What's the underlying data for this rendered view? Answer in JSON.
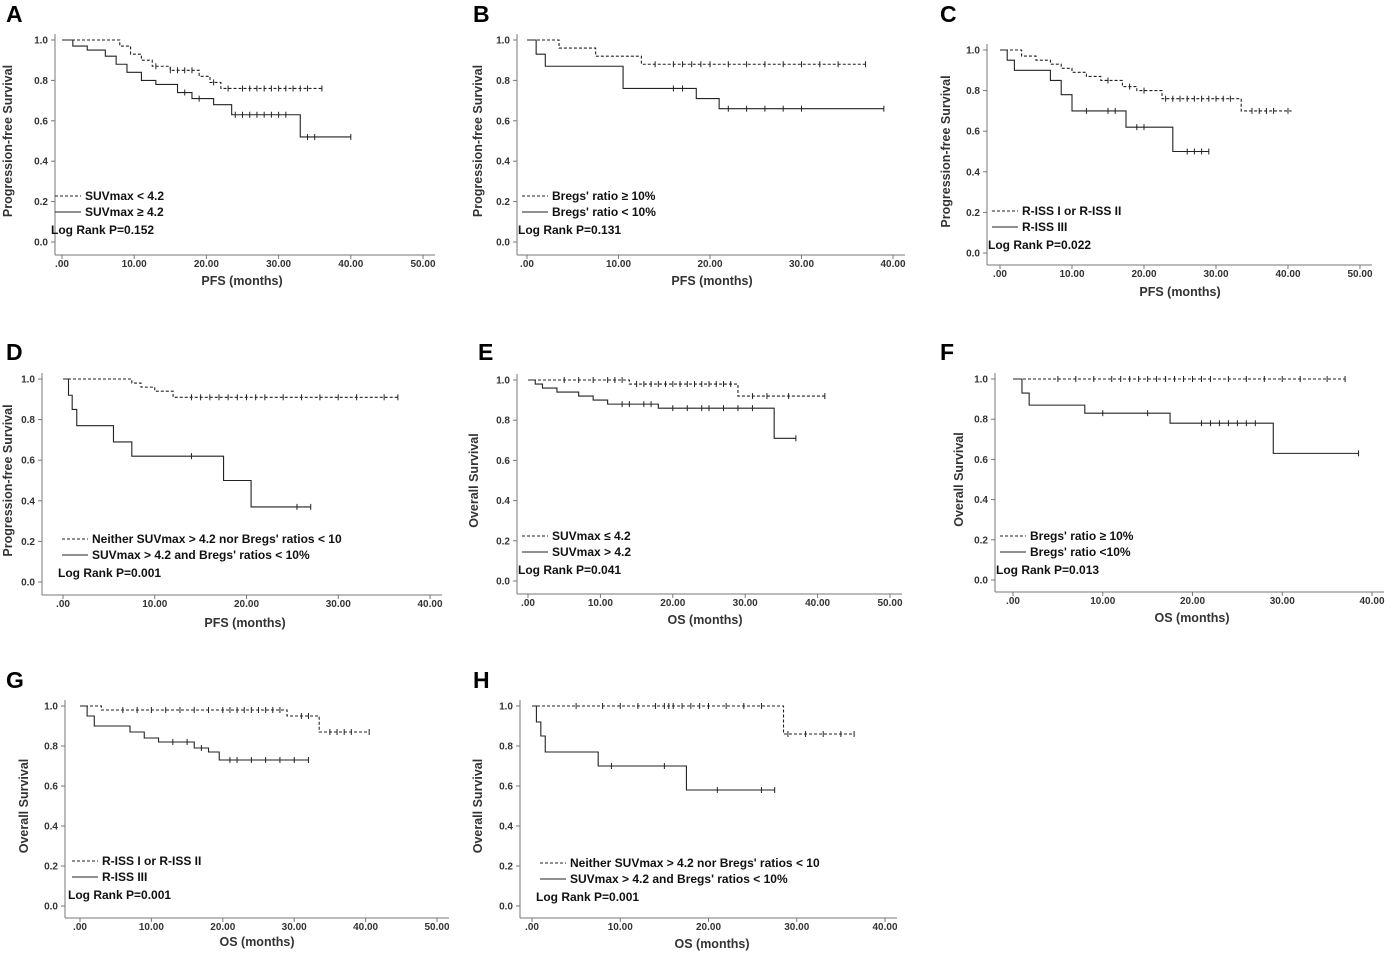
{
  "chart_data": [
    {
      "id": "A",
      "type": "line",
      "letter": "A",
      "ylabel": "Progression-free Survival",
      "xlabel": "PFS (months)",
      "xlim": [
        0,
        50
      ],
      "ylim": [
        0,
        1
      ],
      "xticks": [
        ".00",
        "10.00",
        "20.00",
        "30.00",
        "40.00",
        "50.00"
      ],
      "yticks": [
        "0.0",
        "0.2",
        "0.4",
        "0.6",
        "0.8",
        "1.0"
      ],
      "legend": [
        "SUVmax < 4.2",
        "SUVmax ≥ 4.2"
      ],
      "logrank": "Log Rank P=0.152",
      "series": [
        {
          "name": "SUVmax < 4.2",
          "style": "dashed",
          "steps": [
            [
              0,
              1.0
            ],
            [
              8,
              0.97
            ],
            [
              9.5,
              0.93
            ],
            [
              11,
              0.9
            ],
            [
              12.5,
              0.87
            ],
            [
              15,
              0.85
            ],
            [
              19,
              0.82
            ],
            [
              20.5,
              0.79
            ],
            [
              22,
              0.76
            ],
            [
              36,
              0.76
            ]
          ],
          "censors": [
            13,
            15,
            16,
            17,
            18,
            21,
            23,
            25,
            26,
            27,
            28,
            29,
            30,
            31,
            32,
            33,
            34,
            36
          ]
        },
        {
          "name": "SUVmax ≥ 4.2",
          "style": "solid",
          "steps": [
            [
              0,
              1.0
            ],
            [
              1.5,
              0.97
            ],
            [
              3.5,
              0.95
            ],
            [
              6,
              0.92
            ],
            [
              7.5,
              0.88
            ],
            [
              9,
              0.84
            ],
            [
              11,
              0.8
            ],
            [
              13,
              0.78
            ],
            [
              16,
              0.74
            ],
            [
              18,
              0.71
            ],
            [
              21,
              0.68
            ],
            [
              23.5,
              0.63
            ],
            [
              33,
              0.52
            ],
            [
              40,
              0.52
            ]
          ],
          "censors": [
            17,
            19,
            24,
            25,
            26,
            27,
            28,
            29,
            30,
            31,
            34,
            35,
            40
          ]
        }
      ]
    },
    {
      "id": "B",
      "type": "line",
      "letter": "B",
      "ylabel": "Progression-free Survival",
      "xlabel": "PFS (months)",
      "xlim": [
        0,
        40
      ],
      "ylim": [
        0,
        1
      ],
      "xticks": [
        ".00",
        "10.00",
        "20.00",
        "30.00",
        "40.00"
      ],
      "yticks": [
        "0.0",
        "0.2",
        "0.4",
        "0.6",
        "0.8",
        "1.0"
      ],
      "legend": [
        "Bregs' ratio ≥ 10%",
        "Bregs' ratio < 10%"
      ],
      "logrank": "Log Rank P=0.131",
      "series": [
        {
          "name": "Bregs' ratio ≥ 10%",
          "style": "dashed",
          "steps": [
            [
              0,
              1.0
            ],
            [
              3.5,
              0.96
            ],
            [
              7.5,
              0.92
            ],
            [
              12.5,
              0.88
            ],
            [
              37,
              0.88
            ]
          ],
          "censors": [
            14,
            16,
            17,
            18,
            19,
            20,
            22,
            24,
            26,
            28,
            30,
            32,
            34,
            37
          ]
        },
        {
          "name": "Bregs' ratio < 10%",
          "style": "solid",
          "steps": [
            [
              0,
              1.0
            ],
            [
              1,
              0.93
            ],
            [
              2,
              0.87
            ],
            [
              10.5,
              0.76
            ],
            [
              18.5,
              0.71
            ],
            [
              21,
              0.66
            ],
            [
              39,
              0.66
            ]
          ],
          "censors": [
            16,
            17,
            22,
            24,
            26,
            28,
            30,
            39
          ]
        }
      ]
    },
    {
      "id": "C",
      "type": "line",
      "letter": "C",
      "ylabel": "Progression-free Survival",
      "xlabel": "PFS (months)",
      "xlim": [
        0,
        50
      ],
      "ylim": [
        0,
        1
      ],
      "xticks": [
        ".00",
        "10.00",
        "20.00",
        "30.00",
        "40.00",
        "50.00"
      ],
      "yticks": [
        "0.0",
        "0.2",
        "0.4",
        "0.6",
        "0.8",
        "1.0"
      ],
      "legend": [
        "R-ISS I or R-ISS II",
        "R-ISS III"
      ],
      "logrank": "Log Rank P=0.022",
      "series": [
        {
          "name": "R-ISS I or R-ISS II",
          "style": "dashed",
          "steps": [
            [
              0,
              1.0
            ],
            [
              3,
              0.97
            ],
            [
              5,
              0.95
            ],
            [
              7,
              0.93
            ],
            [
              8.5,
              0.91
            ],
            [
              10,
              0.89
            ],
            [
              12,
              0.87
            ],
            [
              14,
              0.85
            ],
            [
              17,
              0.82
            ],
            [
              19,
              0.8
            ],
            [
              22.5,
              0.76
            ],
            [
              33.5,
              0.7
            ],
            [
              40.5,
              0.7
            ]
          ],
          "censors": [
            15,
            18,
            20,
            23,
            24,
            25,
            26,
            27,
            28,
            29,
            30,
            31,
            32,
            35,
            36,
            37,
            38,
            40
          ]
        },
        {
          "name": "R-ISS III",
          "style": "solid",
          "steps": [
            [
              0,
              1.0
            ],
            [
              1,
              0.95
            ],
            [
              2,
              0.9
            ],
            [
              7,
              0.85
            ],
            [
              8.5,
              0.78
            ],
            [
              10,
              0.7
            ],
            [
              17.5,
              0.62
            ],
            [
              24,
              0.5
            ],
            [
              29,
              0.5
            ]
          ],
          "censors": [
            12,
            15,
            16,
            19,
            20,
            26,
            27,
            28,
            29
          ]
        }
      ]
    },
    {
      "id": "D",
      "type": "line",
      "letter": "D",
      "ylabel": "Progression-free Survival",
      "xlabel": "PFS (months)",
      "xlim": [
        0,
        40
      ],
      "ylim": [
        0,
        1
      ],
      "xticks": [
        ".00",
        "10.00",
        "20.00",
        "30.00",
        "40.00"
      ],
      "yticks": [
        "0.0",
        "0.2",
        "0.4",
        "0.6",
        "0.8",
        "1.0"
      ],
      "legend": [
        "Neither SUVmax > 4.2 nor Bregs' ratios < 10",
        "SUVmax > 4.2 and Bregs' ratios < 10%"
      ],
      "logrank": "Log Rank P=0.001",
      "series": [
        {
          "name": "Neither SUVmax > 4.2 nor Bregs' ratios < 10",
          "style": "dashed",
          "steps": [
            [
              0,
              1.0
            ],
            [
              7.5,
              0.98
            ],
            [
              8.5,
              0.96
            ],
            [
              10,
              0.94
            ],
            [
              12,
              0.91
            ],
            [
              36.5,
              0.91
            ]
          ],
          "censors": [
            14,
            15,
            16,
            17,
            18,
            19,
            20,
            21,
            22,
            24,
            26,
            28,
            30,
            32,
            35,
            36.5
          ]
        },
        {
          "name": "SUVmax > 4.2 and Bregs' ratios < 10%",
          "style": "solid",
          "steps": [
            [
              0,
              1.0
            ],
            [
              0.6,
              0.92
            ],
            [
              1,
              0.85
            ],
            [
              1.5,
              0.77
            ],
            [
              5.5,
              0.69
            ],
            [
              7.5,
              0.62
            ],
            [
              17.5,
              0.5
            ],
            [
              20.5,
              0.37
            ],
            [
              27,
              0.37
            ]
          ],
          "censors": [
            14,
            25.5,
            27
          ]
        }
      ]
    },
    {
      "id": "E",
      "type": "line",
      "letter": "E",
      "ylabel": "Overall Survival",
      "xlabel": "OS (months)",
      "xlim": [
        0,
        50
      ],
      "ylim": [
        0,
        1
      ],
      "xticks": [
        ".00",
        "10.00",
        "20.00",
        "30.00",
        "40.00",
        "50.00"
      ],
      "yticks": [
        "0.0",
        "0.2",
        "0.4",
        "0.6",
        "0.8",
        "1.0"
      ],
      "legend": [
        "SUVmax ≤ 4.2",
        "SUVmax > 4.2"
      ],
      "logrank": "Log Rank P=0.041",
      "series": [
        {
          "name": "SUVmax ≤ 4.2",
          "style": "dashed",
          "steps": [
            [
              0,
              1.0
            ],
            [
              14,
              0.98
            ],
            [
              29,
              0.92
            ],
            [
              41,
              0.92
            ]
          ],
          "censors": [
            5,
            7,
            9,
            11,
            12,
            13,
            15,
            16,
            17,
            18,
            19,
            20,
            21,
            22,
            23,
            24,
            25,
            26,
            27,
            28,
            31,
            33,
            36,
            41
          ]
        },
        {
          "name": "SUVmax > 4.2",
          "style": "solid",
          "steps": [
            [
              0,
              1.0
            ],
            [
              1,
              0.98
            ],
            [
              2,
              0.96
            ],
            [
              4,
              0.94
            ],
            [
              7,
              0.92
            ],
            [
              9,
              0.9
            ],
            [
              11,
              0.88
            ],
            [
              18,
              0.86
            ],
            [
              34,
              0.71
            ],
            [
              37,
              0.71
            ]
          ],
          "censors": [
            13,
            14,
            16,
            17,
            20,
            22,
            24,
            25,
            27,
            29,
            31,
            37
          ]
        }
      ]
    },
    {
      "id": "F",
      "type": "line",
      "letter": "F",
      "ylabel": "Overall Survival",
      "xlabel": "OS (months)",
      "xlim": [
        0,
        40
      ],
      "ylim": [
        0,
        1
      ],
      "xticks": [
        ".00",
        "10.00",
        "20.00",
        "30.00",
        "40.00"
      ],
      "yticks": [
        "0.0",
        "0.2",
        "0.4",
        "0.6",
        "0.8",
        "1.0"
      ],
      "legend": [
        "Bregs' ratio ≥ 10%",
        "Bregs' ratio <10%"
      ],
      "logrank": "Log Rank P=0.013",
      "series": [
        {
          "name": "Bregs' ratio ≥ 10%",
          "style": "dashed",
          "steps": [
            [
              0,
              1.0
            ],
            [
              37,
              1.0
            ]
          ],
          "censors": [
            5,
            7,
            9,
            11,
            12,
            13,
            14,
            15,
            16,
            17,
            18,
            19,
            20,
            21,
            22,
            24,
            26,
            28,
            30,
            32,
            35,
            37
          ]
        },
        {
          "name": "Bregs' ratio <10%",
          "style": "solid",
          "steps": [
            [
              0,
              1.0
            ],
            [
              1,
              0.93
            ],
            [
              1.8,
              0.87
            ],
            [
              8,
              0.83
            ],
            [
              17.5,
              0.78
            ],
            [
              29,
              0.63
            ],
            [
              38.5,
              0.63
            ]
          ],
          "censors": [
            10,
            15,
            21,
            22,
            23,
            24,
            25,
            26,
            27,
            38.5
          ]
        }
      ]
    },
    {
      "id": "G",
      "type": "line",
      "letter": "G",
      "ylabel": "Overall Survival",
      "xlabel": "OS (months)",
      "xlim": [
        0,
        50
      ],
      "ylim": [
        0,
        1
      ],
      "xticks": [
        ".00",
        "10.00",
        "20.00",
        "30.00",
        "40.00",
        "50.00"
      ],
      "yticks": [
        "0.0",
        "0.2",
        "0.4",
        "0.6",
        "0.8",
        "1.0"
      ],
      "legend": [
        "R-ISS I or R-ISS II",
        "R-ISS III"
      ],
      "logrank": "Log Rank P=0.001",
      "series": [
        {
          "name": "R-ISS I or R-ISS II",
          "style": "dashed",
          "steps": [
            [
              0,
              1.0
            ],
            [
              3,
              0.98
            ],
            [
              29,
              0.95
            ],
            [
              33.5,
              0.87
            ],
            [
              40.5,
              0.87
            ]
          ],
          "censors": [
            6,
            8,
            10,
            12,
            14,
            16,
            18,
            20,
            21,
            22,
            23,
            24,
            25,
            26,
            27,
            28,
            31,
            32,
            35,
            36,
            37,
            38,
            40.5
          ]
        },
        {
          "name": "R-ISS III",
          "style": "solid",
          "steps": [
            [
              0,
              1.0
            ],
            [
              1,
              0.95
            ],
            [
              2,
              0.9
            ],
            [
              7,
              0.87
            ],
            [
              9,
              0.84
            ],
            [
              11,
              0.82
            ],
            [
              16,
              0.79
            ],
            [
              18,
              0.77
            ],
            [
              19.5,
              0.73
            ],
            [
              32,
              0.73
            ]
          ],
          "censors": [
            13,
            15,
            17,
            21,
            22,
            24,
            26,
            28,
            30,
            32
          ]
        }
      ]
    },
    {
      "id": "H",
      "type": "line",
      "letter": "H",
      "ylabel": "Overall Survival",
      "xlabel": "OS (months)",
      "xlim": [
        0,
        40
      ],
      "ylim": [
        0,
        1
      ],
      "xticks": [
        ".00",
        "10.00",
        "20.00",
        "30.00",
        "40.00"
      ],
      "yticks": [
        "0.0",
        "0.2",
        "0.4",
        "0.6",
        "0.8",
        "1.0"
      ],
      "legend": [
        "Neither SUVmax > 4.2 nor Bregs' ratios < 10",
        "SUVmax > 4.2 and Bregs' ratios < 10%"
      ],
      "logrank": "Log Rank P=0.001",
      "series": [
        {
          "name": "Neither SUVmax > 4.2 nor Bregs' ratios < 10",
          "style": "dashed",
          "steps": [
            [
              0,
              1.0
            ],
            [
              28.5,
              0.86
            ],
            [
              36.5,
              0.86
            ]
          ],
          "censors": [
            5,
            8,
            10,
            12,
            14,
            15,
            15.5,
            16,
            17,
            18,
            19,
            20,
            22,
            24,
            26,
            29,
            31,
            33,
            35,
            36.5
          ]
        },
        {
          "name": "SUVmax > 4.2 and Bregs' ratios < 10%",
          "style": "solid",
          "steps": [
            [
              0,
              1.0
            ],
            [
              0.5,
              0.92
            ],
            [
              1,
              0.85
            ],
            [
              1.5,
              0.77
            ],
            [
              7.5,
              0.7
            ],
            [
              17.5,
              0.58
            ],
            [
              27.5,
              0.58
            ]
          ],
          "censors": [
            9,
            15,
            21,
            26,
            27.5
          ]
        }
      ]
    }
  ]
}
